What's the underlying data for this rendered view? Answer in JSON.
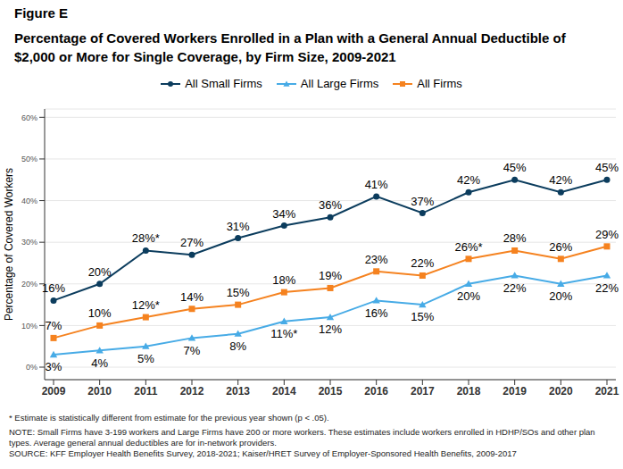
{
  "chart_data": {
    "type": "line",
    "subtitle": "Figure E",
    "title": "Percentage of Covered Workers Enrolled in a Plan with a General Annual Deductible of $2,000 or More for Single Coverage, by Firm Size, 2009-2021",
    "y_label": "Percentage of Covered Workers",
    "categories": [
      "2009",
      "2010",
      "2011",
      "2012",
      "2013",
      "2014",
      "2015",
      "2016",
      "2017",
      "2018",
      "2019",
      "2020",
      "2021"
    ],
    "series": [
      {
        "name": "All Small Firms",
        "color": "#0b3c5d",
        "marker": "circle",
        "values": [
          16,
          20,
          28,
          27,
          31,
          34,
          36,
          41,
          37,
          42,
          45,
          42,
          45
        ],
        "value_labels": [
          "16%",
          "20%",
          "28%*",
          "27%",
          "31%",
          "34%",
          "36%",
          "41%",
          "37%",
          "42%",
          "45%",
          "42%",
          "45%"
        ]
      },
      {
        "name": "All Large Firms",
        "color": "#47abe6",
        "marker": "triangle",
        "values": [
          3,
          4,
          5,
          7,
          8,
          11,
          12,
          16,
          15,
          20,
          22,
          20,
          22
        ],
        "value_labels": [
          "3%",
          "4%",
          "5%",
          "7%",
          "8%",
          "11%*",
          "12%",
          "16%",
          "15%",
          "20%",
          "22%",
          "20%",
          "22%"
        ]
      },
      {
        "name": "All Firms",
        "color": "#f5821f",
        "marker": "square",
        "values": [
          7,
          10,
          12,
          14,
          15,
          18,
          19,
          23,
          22,
          26,
          28,
          26,
          29
        ],
        "value_labels": [
          "7%",
          "10%",
          "12%*",
          "14%",
          "15%",
          "18%",
          "19%",
          "23%",
          "22%",
          "26%*",
          "28%",
          "26%",
          "29%"
        ]
      }
    ],
    "ylim": [
      -3,
      62
    ],
    "yticks": [
      {
        "value": 0,
        "label": "0%"
      },
      {
        "value": 10,
        "label": "10%"
      },
      {
        "value": 20,
        "label": "20%"
      },
      {
        "value": 30,
        "label": "30%"
      },
      {
        "value": 40,
        "label": "40%"
      },
      {
        "value": 50,
        "label": "50%"
      },
      {
        "value": 60,
        "label": "60%"
      }
    ],
    "grid": true,
    "legend": "top",
    "data_labels": true,
    "annotations": [
      "* Estimate is statistically different from estimate for the previous year shown (p < .05).",
      "NOTE: Small Firms have 3-199 workers and Large Firms have 200 or more workers. These estimates include workers enrolled in HDHP/SOs and other plan types. Average general annual deductibles are for in-network providers.",
      "SOURCE: KFF Employer Health Benefits Survey, 2018-2021; Kaiser/HRET Survey of Employer-Sponsored Health Benefits, 2009-2017"
    ]
  }
}
